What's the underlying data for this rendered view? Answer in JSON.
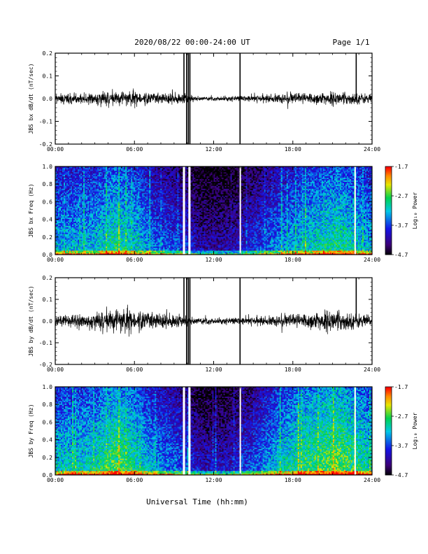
{
  "header": {
    "title": "2020/08/22  00:00-24:00 UT",
    "page": "Page 1/1"
  },
  "xaxis_title": "Universal Time (hh:mm)",
  "colors": {
    "trace": "#000000",
    "background": "#ffffff",
    "gap": "#ffffff"
  },
  "chart_data": [
    {
      "type": "line",
      "ylabel": "JBS bx dB/dt (nT/sec)",
      "x_ticks": [
        "00:00",
        "06:00",
        "12:00",
        "18:00",
        "24:00"
      ],
      "xlim": [
        "00:00",
        "24:00"
      ],
      "y_ticks": [
        "0.2",
        "0.1",
        "0.0",
        "-0.1",
        "-0.2"
      ],
      "ylim": [
        -0.2,
        0.2
      ],
      "baseline": 0.0,
      "noise_amplitude": [
        {
          "time": "00:00",
          "amp": 0.01
        },
        {
          "time": "02:00",
          "amp": 0.012
        },
        {
          "time": "04:00",
          "amp": 0.014
        },
        {
          "time": "05:00",
          "amp": 0.016
        },
        {
          "time": "07:00",
          "amp": 0.012
        },
        {
          "time": "09:00",
          "amp": 0.012
        },
        {
          "time": "10:30",
          "amp": 0.006
        },
        {
          "time": "12:00",
          "amp": 0.004
        },
        {
          "time": "14:00",
          "amp": 0.006
        },
        {
          "time": "16:00",
          "amp": 0.008
        },
        {
          "time": "18:00",
          "amp": 0.012
        },
        {
          "time": "21:00",
          "amp": 0.014
        },
        {
          "time": "24:00",
          "amp": 0.01
        }
      ],
      "spikes": [
        {
          "time": "09:45",
          "ymin": 0.0,
          "ymax": 0.2
        },
        {
          "time": "09:57",
          "ymin": -0.2,
          "ymax": 0.2
        },
        {
          "time": "10:05",
          "ymin": -0.2,
          "ymax": 0.2
        },
        {
          "time": "10:12",
          "ymin": -0.2,
          "ymax": 0.2
        },
        {
          "time": "14:00",
          "ymin": -0.2,
          "ymax": 0.2
        },
        {
          "time": "22:48",
          "ymin": 0.0,
          "ymax": 0.2
        }
      ]
    },
    {
      "type": "heatmap",
      "ylabel": "JBS bx Freq (Hz)",
      "x_ticks": [
        "00:00",
        "06:00",
        "12:00",
        "18:00",
        "24:00"
      ],
      "xlim": [
        "00:00",
        "24:00"
      ],
      "y_ticks": [
        "1.0",
        "0.8",
        "0.6",
        "0.4",
        "0.2",
        "0.0"
      ],
      "ylim": [
        0,
        1.0
      ],
      "colorbar": {
        "label": "Log₁₀ Power",
        "ticks": [
          "-1.7",
          "-2.7",
          "-3.7",
          "-4.7"
        ],
        "range": [
          -4.7,
          -1.7
        ]
      },
      "gaps": [
        {
          "from": "09:40",
          "to": "09:50"
        },
        {
          "from": "10:05",
          "to": "10:15"
        },
        {
          "from": "13:58",
          "to": "14:03"
        },
        {
          "from": "22:40",
          "to": "22:45"
        }
      ],
      "activity_profile": [
        {
          "time": "00:00",
          "level": 0.5
        },
        {
          "time": "03:00",
          "level": 0.52
        },
        {
          "time": "04:30",
          "level": 0.62
        },
        {
          "time": "06:00",
          "level": 0.55
        },
        {
          "time": "07:30",
          "level": 0.42
        },
        {
          "time": "09:30",
          "level": 0.35
        },
        {
          "time": "11:00",
          "level": 0.22
        },
        {
          "time": "13:00",
          "level": 0.22
        },
        {
          "time": "15:00",
          "level": 0.32
        },
        {
          "time": "17:00",
          "level": 0.45
        },
        {
          "time": "19:00",
          "level": 0.55
        },
        {
          "time": "21:30",
          "level": 0.62
        },
        {
          "time": "24:00",
          "level": 0.5
        }
      ]
    },
    {
      "type": "line",
      "ylabel": "JBS by dB/dt (nT/sec)",
      "x_ticks": [
        "00:00",
        "06:00",
        "12:00",
        "18:00",
        "24:00"
      ],
      "xlim": [
        "00:00",
        "24:00"
      ],
      "y_ticks": [
        "0.2",
        "0.1",
        "0.0",
        "-0.1",
        "-0.2"
      ],
      "ylim": [
        -0.2,
        0.2
      ],
      "baseline": 0.0,
      "noise_amplitude": [
        {
          "time": "00:00",
          "amp": 0.012
        },
        {
          "time": "03:00",
          "amp": 0.016
        },
        {
          "time": "04:30",
          "amp": 0.028
        },
        {
          "time": "06:00",
          "amp": 0.022
        },
        {
          "time": "08:00",
          "amp": 0.018
        },
        {
          "time": "10:00",
          "amp": 0.01
        },
        {
          "time": "12:00",
          "amp": 0.006
        },
        {
          "time": "14:00",
          "amp": 0.008
        },
        {
          "time": "16:00",
          "amp": 0.01
        },
        {
          "time": "18:00",
          "amp": 0.016
        },
        {
          "time": "21:00",
          "amp": 0.024
        },
        {
          "time": "24:00",
          "amp": 0.012
        }
      ],
      "spikes": [
        {
          "time": "09:45",
          "ymin": 0.0,
          "ymax": 0.2
        },
        {
          "time": "09:57",
          "ymin": -0.2,
          "ymax": 0.2
        },
        {
          "time": "10:05",
          "ymin": -0.2,
          "ymax": 0.2
        },
        {
          "time": "10:12",
          "ymin": -0.2,
          "ymax": 0.2
        },
        {
          "time": "14:00",
          "ymin": -0.2,
          "ymax": 0.2
        },
        {
          "time": "22:48",
          "ymin": 0.0,
          "ymax": 0.2
        }
      ]
    },
    {
      "type": "heatmap",
      "ylabel": "JBS by Freq (Hz)",
      "x_ticks": [
        "00:00",
        "06:00",
        "12:00",
        "18:00",
        "24:00"
      ],
      "xlim": [
        "00:00",
        "24:00"
      ],
      "y_ticks": [
        "1.0",
        "0.8",
        "0.6",
        "0.4",
        "0.2",
        "0.0"
      ],
      "ylim": [
        0,
        1.0
      ],
      "colorbar": {
        "label": "Log₁₀ Power",
        "ticks": [
          "-1.7",
          "-2.7",
          "-3.7",
          "-4.7"
        ],
        "range": [
          -4.7,
          -1.7
        ]
      },
      "gaps": [
        {
          "from": "09:40",
          "to": "09:50"
        },
        {
          "from": "10:05",
          "to": "10:15"
        },
        {
          "from": "13:58",
          "to": "14:03"
        },
        {
          "from": "22:40",
          "to": "22:45"
        }
      ],
      "activity_profile": [
        {
          "time": "00:00",
          "level": 0.55
        },
        {
          "time": "03:00",
          "level": 0.58
        },
        {
          "time": "04:30",
          "level": 0.7
        },
        {
          "time": "06:00",
          "level": 0.62
        },
        {
          "time": "07:30",
          "level": 0.48
        },
        {
          "time": "09:30",
          "level": 0.4
        },
        {
          "time": "11:00",
          "level": 0.25
        },
        {
          "time": "13:00",
          "level": 0.26
        },
        {
          "time": "15:00",
          "level": 0.38
        },
        {
          "time": "17:00",
          "level": 0.55
        },
        {
          "time": "19:00",
          "level": 0.66
        },
        {
          "time": "21:30",
          "level": 0.72
        },
        {
          "time": "24:00",
          "level": 0.58
        }
      ]
    }
  ]
}
